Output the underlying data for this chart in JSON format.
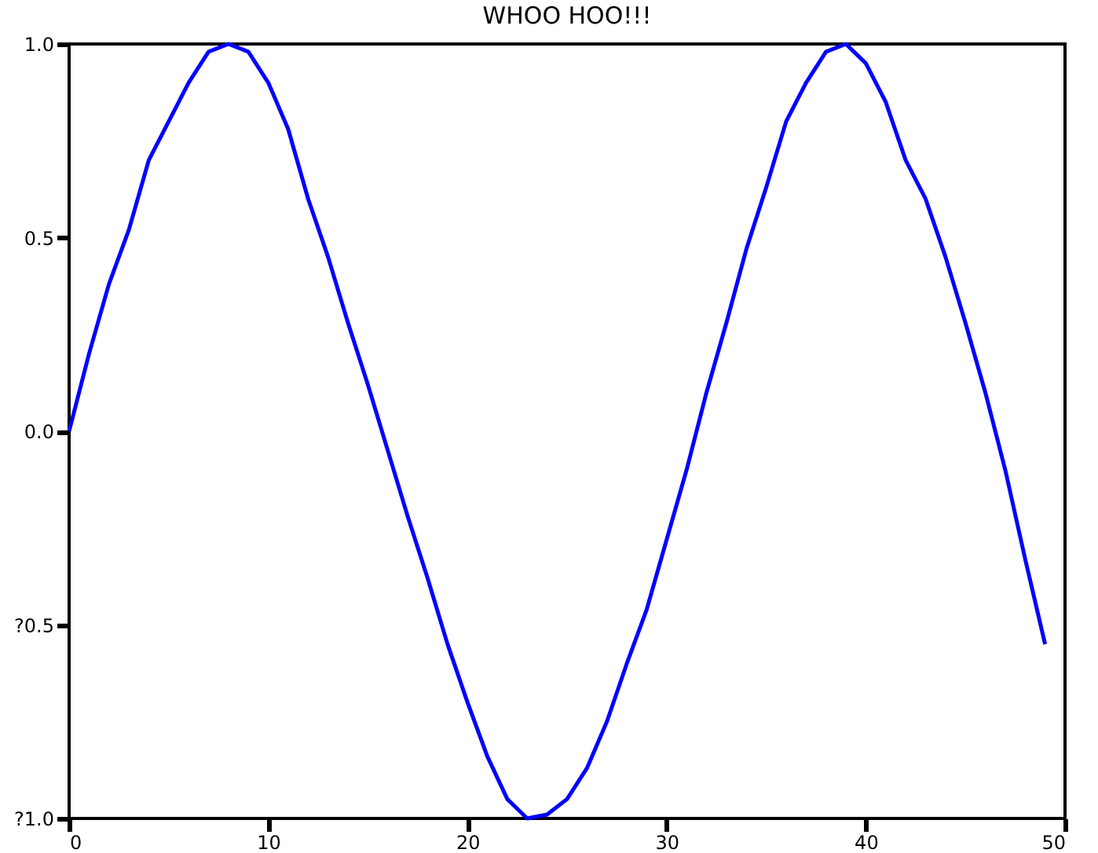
{
  "chart_data": {
    "type": "line",
    "title": "WHOO HOO!!!",
    "x": [
      0,
      1,
      2,
      3,
      4,
      5,
      6,
      7,
      8,
      9,
      10,
      11,
      12,
      13,
      14,
      15,
      16,
      17,
      18,
      19,
      20,
      21,
      22,
      23,
      24,
      25,
      26,
      27,
      28,
      29,
      30,
      31,
      32,
      33,
      34,
      35,
      36,
      37,
      38,
      39,
      40,
      41,
      42,
      43,
      44,
      45,
      46,
      47,
      48,
      49
    ],
    "series": [
      {
        "color": "#0000ff",
        "values": [
          0,
          0.2,
          0.38,
          0.52,
          0.7,
          0.8,
          0.9,
          0.98,
          1.0,
          0.98,
          0.9,
          0.78,
          0.6,
          0.45,
          0.28,
          0.12,
          -0.05,
          -0.22,
          -0.38,
          -0.55,
          -0.7,
          -0.84,
          -0.95,
          -1.0,
          -0.99,
          -0.95,
          -0.87,
          -0.75,
          -0.6,
          -0.46,
          -0.28,
          -0.1,
          0.1,
          0.28,
          0.47,
          0.63,
          0.8,
          0.9,
          0.98,
          1.0,
          0.95,
          0.85,
          0.7,
          0.6,
          0.45,
          0.28,
          0.1,
          -0.1,
          -0.33,
          -0.55
        ]
      }
    ],
    "xlim": [
      0,
      50
    ],
    "xticks": [
      0,
      10,
      20,
      30,
      40,
      50
    ],
    "ylim": [
      -1,
      1
    ],
    "yticks": [
      {
        "value": -1,
        "label": "?1.0"
      },
      {
        "value": -0.5,
        "label": "?0.5"
      },
      {
        "value": 0,
        "label": "0.0"
      },
      {
        "value": 0.5,
        "label": "0.5"
      },
      {
        "value": 1,
        "label": "1.0"
      }
    ],
    "grid": false,
    "marker": "none",
    "line_style": "solid"
  }
}
